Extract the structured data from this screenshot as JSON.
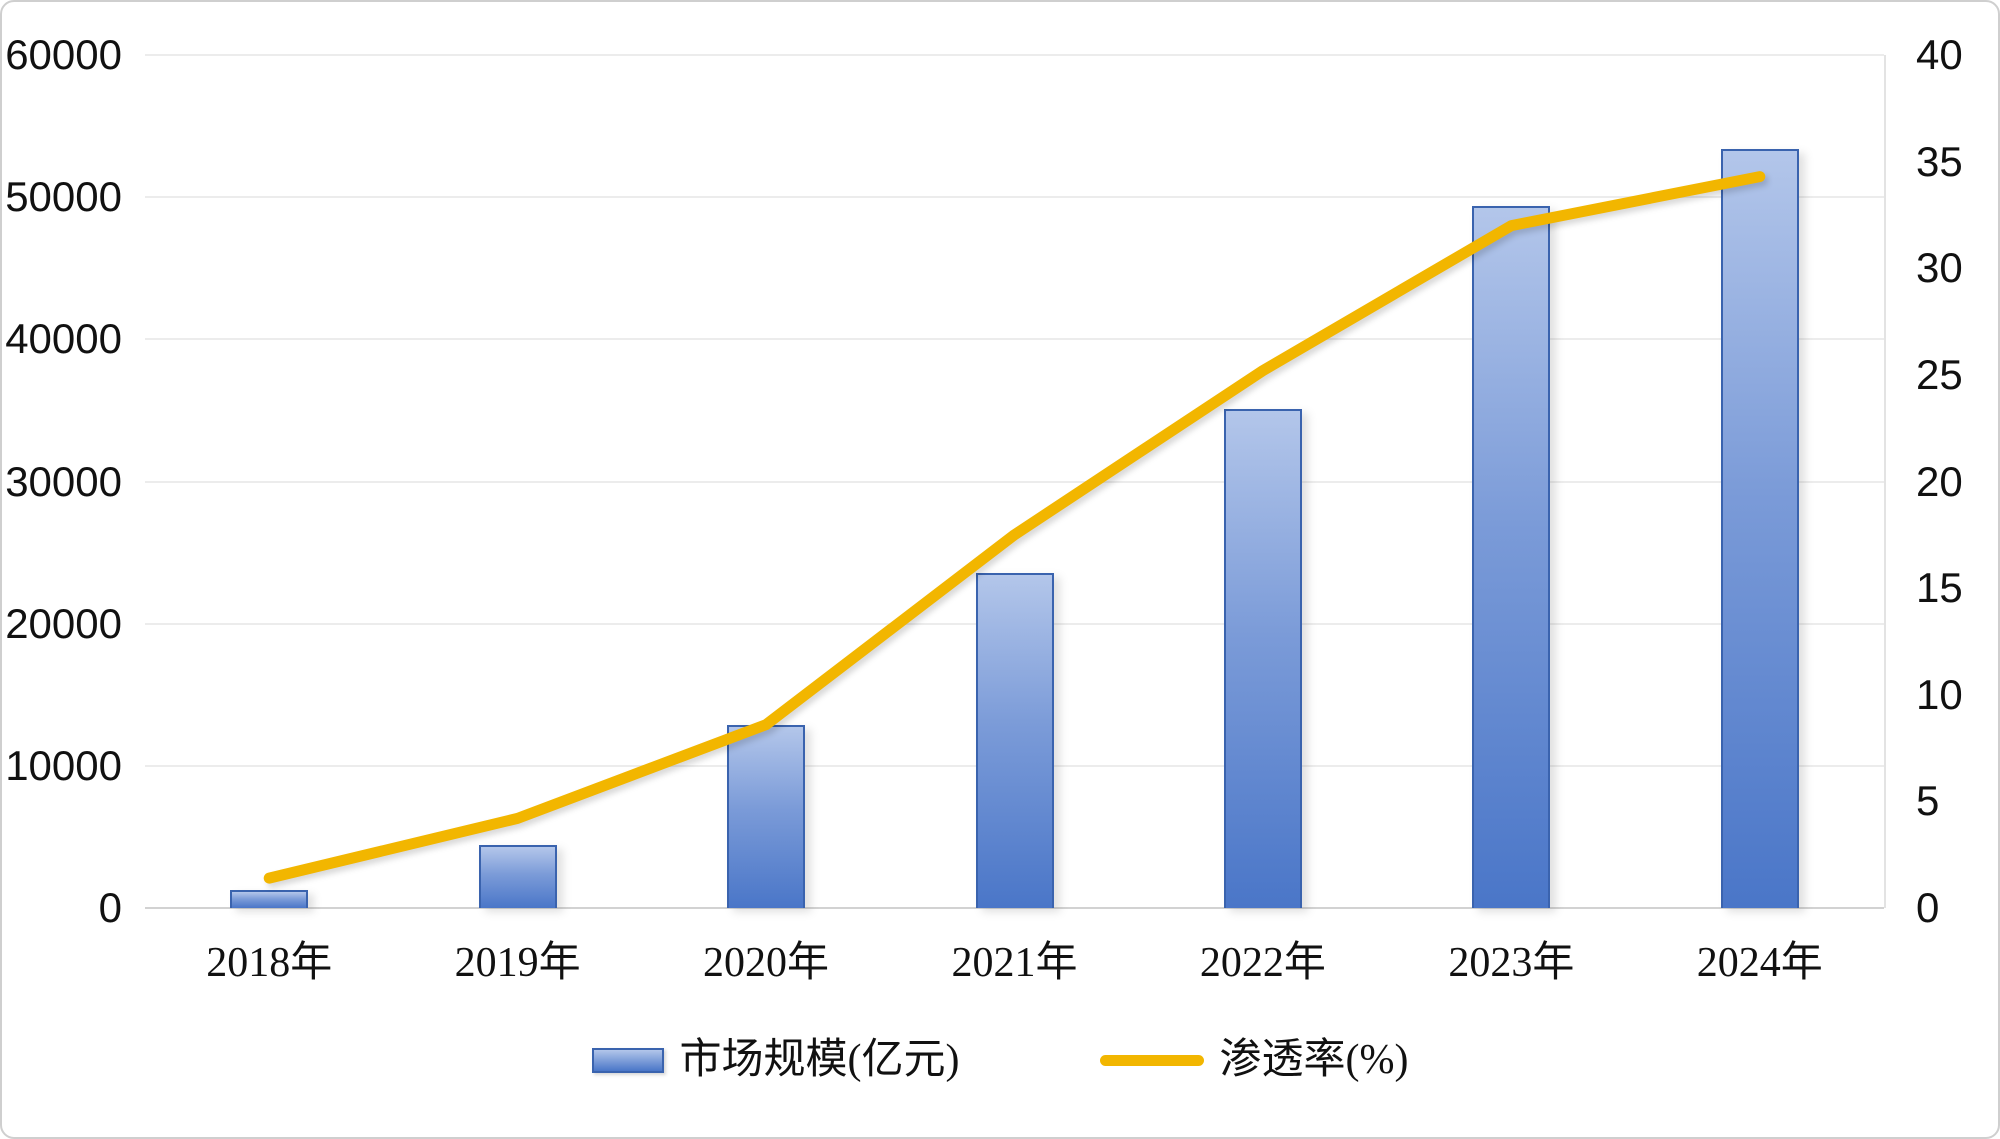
{
  "chart_data": {
    "type": "combo",
    "categories": [
      "2018年",
      "2019年",
      "2020年",
      "2021年",
      "2022年",
      "2023年",
      "2024年"
    ],
    "series": [
      {
        "name": "市场规模(亿元)",
        "chart_type": "bar",
        "axis": "left",
        "values": [
          1300,
          4400,
          12900,
          23600,
          35100,
          49400,
          53400
        ],
        "color_top": "#b3c6ea",
        "color_bottom": "#4a76c8",
        "border_color": "#3a63ae"
      },
      {
        "name": "渗透率(%)",
        "chart_type": "line",
        "axis": "right",
        "values": [
          1.4,
          4.2,
          8.6,
          17.5,
          25.2,
          32.0,
          34.3
        ],
        "color": "#f2b600"
      }
    ],
    "left_axis": {
      "min": 0,
      "max": 60000,
      "step": 10000,
      "ticks": [
        "60000",
        "50000",
        "40000",
        "30000",
        "20000",
        "10000",
        "0"
      ]
    },
    "right_axis": {
      "min": 0,
      "max": 40,
      "step": 5,
      "ticks": [
        "40",
        "35",
        "30",
        "25",
        "20",
        "15",
        "10",
        "5",
        "0"
      ]
    },
    "title": "",
    "xlabel": "",
    "ylabel": "",
    "grid": "horizontal",
    "legend_position": "bottom",
    "background_color": "#ffffff",
    "grid_color": "#ececec",
    "axis_line_color": "#d2d2d2",
    "text_color": "#111111"
  }
}
